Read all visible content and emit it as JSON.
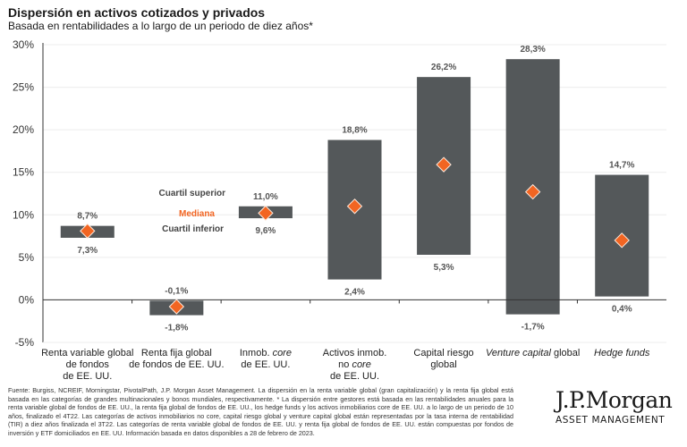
{
  "header": {
    "title": "Dispersión en activos cotizados y privados",
    "subtitle": "Basada en rentabilidades a lo largo de un periodo de diez años*"
  },
  "legend": {
    "upper": "Cuartil superior",
    "median": "Mediana",
    "lower": "Cuartil inferior"
  },
  "colors": {
    "bar": "#54585a",
    "median": "#f26522",
    "median_border": "#fde9dc",
    "grid": "#ececec",
    "axis": "#333333"
  },
  "chart_data": {
    "type": "box-range",
    "title": "Dispersión en activos cotizados y privados",
    "subtitle": "Basada en rentabilidades a lo largo de un periodo de diez años*",
    "xlabel": "",
    "ylabel": "",
    "ylim": [
      -5,
      30
    ],
    "yticks": [
      30,
      25,
      20,
      15,
      10,
      5,
      0,
      -5
    ],
    "ytick_labels": [
      "30%",
      "25%",
      "20%",
      "15%",
      "10%",
      "5%",
      "0%",
      "-5%"
    ],
    "grid": true,
    "legend_placement": "inline annotation on third category (left side)",
    "categories": [
      [
        "Renta variable global",
        "de fondos",
        "de EE. UU."
      ],
      [
        "Renta fija global",
        "de fondos de EE. UU."
      ],
      [
        "Inmob. core",
        "de EE. UU."
      ],
      [
        "Activos inmob.",
        "no core",
        "de EE. UU."
      ],
      [
        "Capital riesgo",
        "global"
      ],
      [
        "Venture capital global"
      ],
      [
        "Hedge funds"
      ]
    ],
    "series": [
      {
        "name": "Cuartil superior",
        "values": [
          8.7,
          -0.1,
          11.0,
          18.8,
          26.2,
          28.3,
          14.7
        ]
      },
      {
        "name": "Cuartil inferior",
        "values": [
          7.3,
          -1.8,
          9.6,
          2.4,
          5.3,
          -1.7,
          0.4
        ]
      },
      {
        "name": "Mediana",
        "values": [
          8.1,
          -0.8,
          10.2,
          11.0,
          15.9,
          12.7,
          7.0
        ]
      }
    ],
    "upper_labels": [
      "8,7%",
      "-0,1%",
      "11,0%",
      "18,8%",
      "26,2%",
      "28,3%",
      "14,7%"
    ],
    "lower_labels": [
      "7,3%",
      "-1,8%",
      "9,6%",
      "2,4%",
      "5,3%",
      "-1,7%",
      "0,4%"
    ]
  },
  "footnote": "Fuente: Burgiss, NCREIF, Morningstar, PivotalPath, J.P. Morgan Asset Management. La dispersión en la renta variable global (gran capitalización) y la renta fija global está basada en las categorías de grandes multinacionales y bonos mundiales, respectivamente. * La dispersión entre gestores está basada en las rentabilidades anuales para la renta variable global de fondos de EE. UU., la renta fija global de fondos de EE. UU., los hedge funds y los activos inmobiliarios core de EE. UU. a lo largo de un periodo de 10 años, finalizado el 4T22. Las categorías de activos inmobiliarios no core, capital riesgo global y venture capital global están representadas por la tasa interna de rentabilidad (TIR) a diez años finalizada el 3T22. Las categorías de renta variable global de fondos de EE. UU. y renta fija global de fondos de EE. UU. están compuestas por fondos de inversión y ETF domiciliados en EE. UU. Información basada en datos disponibles a 28 de febrero de 2023.",
  "logo": {
    "main": "J.P.Morgan",
    "sub": "ASSET MANAGEMENT"
  }
}
